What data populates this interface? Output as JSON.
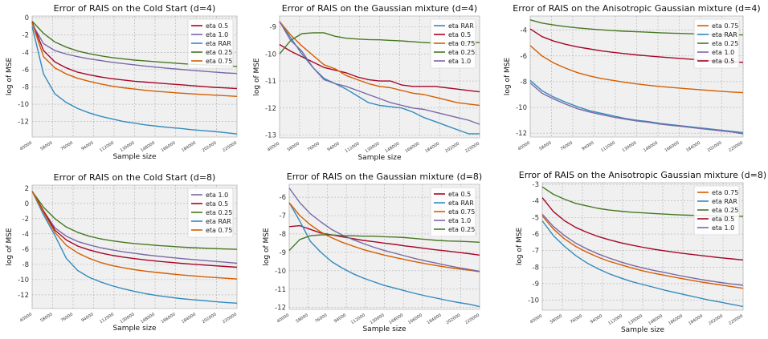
{
  "colors": {
    "eta 0.5": "#A60628",
    "eta 1.0": "#7A68A6",
    "eta RAR": "#348ABD",
    "eta 0.25": "#467821",
    "eta 0.75": "#D55E00",
    "panel_bg": "#F0F0F0",
    "grid": "#B0B0B0"
  },
  "x_ticks": [
    "40000",
    "58000",
    "76000",
    "94000",
    "112000",
    "130000",
    "148000",
    "166000",
    "184000",
    "202000",
    "220000"
  ],
  "chart_data": [
    {
      "type": "line",
      "title": "Error of RAIS on the Cold Start (d=4)",
      "xlabel": "Sample size",
      "ylabel": "log of MSE",
      "x": [
        40000,
        50000,
        60000,
        70000,
        80000,
        90000,
        100000,
        110000,
        120000,
        130000,
        140000,
        150000,
        160000,
        170000,
        180000,
        190000,
        200000,
        210000,
        220000
      ],
      "ylim": [
        -13.8,
        0.2
      ],
      "yticks": [
        0,
        -2,
        -4,
        -6,
        -8,
        -10,
        -12
      ],
      "legend": "top-right",
      "grid": true,
      "series": [
        {
          "name": "eta 0.5",
          "values": [
            -0.5,
            -3.8,
            -5.1,
            -5.8,
            -6.3,
            -6.6,
            -6.85,
            -7.05,
            -7.2,
            -7.35,
            -7.45,
            -7.55,
            -7.65,
            -7.75,
            -7.85,
            -7.95,
            -8.05,
            -8.12,
            -8.2
          ]
        },
        {
          "name": "eta 1.0",
          "values": [
            -0.7,
            -3.0,
            -3.8,
            -4.2,
            -4.5,
            -4.75,
            -4.95,
            -5.15,
            -5.3,
            -5.45,
            -5.6,
            -5.72,
            -5.85,
            -5.97,
            -6.08,
            -6.18,
            -6.28,
            -6.38,
            -6.45
          ]
        },
        {
          "name": "eta RAR",
          "values": [
            -1.0,
            -6.5,
            -8.8,
            -9.8,
            -10.5,
            -11.0,
            -11.4,
            -11.7,
            -12.0,
            -12.2,
            -12.4,
            -12.55,
            -12.7,
            -12.8,
            -12.95,
            -13.05,
            -13.15,
            -13.3,
            -13.45
          ]
        },
        {
          "name": "eta 0.25",
          "values": [
            -0.4,
            -1.8,
            -2.8,
            -3.4,
            -3.85,
            -4.15,
            -4.4,
            -4.6,
            -4.75,
            -4.9,
            -5.0,
            -5.1,
            -5.2,
            -5.3,
            -5.38,
            -5.45,
            -5.52,
            -5.58,
            -5.62
          ]
        },
        {
          "name": "eta 0.75",
          "values": [
            -0.6,
            -4.5,
            -5.8,
            -6.5,
            -7.0,
            -7.35,
            -7.65,
            -7.9,
            -8.1,
            -8.25,
            -8.4,
            -8.52,
            -8.62,
            -8.72,
            -8.8,
            -8.88,
            -8.95,
            -9.02,
            -9.1
          ]
        }
      ]
    },
    {
      "type": "line",
      "title": "Error of RAIS on the Gaussian mixture (d=4)",
      "xlabel": "Sample size",
      "ylabel": "log of MSE",
      "x": [
        40000,
        50000,
        60000,
        70000,
        80000,
        90000,
        100000,
        110000,
        120000,
        130000,
        140000,
        150000,
        160000,
        170000,
        180000,
        190000,
        200000,
        210000,
        220000
      ],
      "ylim": [
        -13.1,
        -8.6
      ],
      "yticks": [
        -9,
        -10,
        -11,
        -12,
        -13
      ],
      "legend": "top-right",
      "grid": true,
      "series": [
        {
          "name": "eta RAR",
          "values": [
            -8.8,
            -9.4,
            -10.0,
            -10.5,
            -10.9,
            -11.1,
            -11.3,
            -11.55,
            -11.8,
            -11.9,
            -11.95,
            -12.0,
            -12.15,
            -12.35,
            -12.5,
            -12.65,
            -12.8,
            -12.95,
            -12.95
          ]
        },
        {
          "name": "eta 0.5",
          "values": [
            -9.65,
            -9.9,
            -10.1,
            -10.3,
            -10.5,
            -10.6,
            -10.7,
            -10.85,
            -10.95,
            -11.0,
            -11.0,
            -11.15,
            -11.2,
            -11.2,
            -11.2,
            -11.25,
            -11.3,
            -11.35,
            -11.4
          ]
        },
        {
          "name": "eta 0.75",
          "values": [
            -8.8,
            -9.3,
            -9.7,
            -10.05,
            -10.4,
            -10.55,
            -10.8,
            -10.95,
            -11.1,
            -11.2,
            -11.25,
            -11.35,
            -11.45,
            -11.5,
            -11.6,
            -11.7,
            -11.8,
            -11.85,
            -11.9
          ]
        },
        {
          "name": "eta 0.25",
          "values": [
            -10.0,
            -9.5,
            -9.25,
            -9.22,
            -9.22,
            -9.35,
            -9.42,
            -9.45,
            -9.47,
            -9.48,
            -9.5,
            -9.52,
            -9.55,
            -9.58,
            -9.6,
            -9.6,
            -9.6,
            -9.58,
            -9.58
          ]
        },
        {
          "name": "eta 1.0",
          "values": [
            -8.8,
            -9.5,
            -9.9,
            -10.5,
            -10.95,
            -11.1,
            -11.2,
            -11.35,
            -11.5,
            -11.65,
            -11.8,
            -11.9,
            -12.0,
            -12.05,
            -12.15,
            -12.25,
            -12.35,
            -12.45,
            -12.6
          ]
        }
      ]
    },
    {
      "type": "line",
      "title": "Error of RAIS on the Anisotropic Gaussian mixture (d=4)",
      "xlabel": "",
      "ylabel": "log of MSE",
      "x": [
        40000,
        50000,
        60000,
        70000,
        80000,
        90000,
        100000,
        110000,
        120000,
        130000,
        140000,
        150000,
        160000,
        170000,
        180000,
        190000,
        200000,
        210000,
        220000
      ],
      "ylim": [
        -12.3,
        -2.9
      ],
      "yticks": [
        -4,
        -6,
        -8,
        -10,
        -12
      ],
      "legend": "top-right",
      "grid": true,
      "series": [
        {
          "name": "eta 0.75",
          "values": [
            -5.2,
            -6.0,
            -6.55,
            -6.95,
            -7.3,
            -7.55,
            -7.75,
            -7.9,
            -8.05,
            -8.17,
            -8.28,
            -8.37,
            -8.45,
            -8.53,
            -8.6,
            -8.67,
            -8.74,
            -8.8,
            -8.85
          ]
        },
        {
          "name": "eta RAR",
          "values": [
            -7.9,
            -8.7,
            -9.2,
            -9.6,
            -9.95,
            -10.25,
            -10.45,
            -10.65,
            -10.85,
            -11.0,
            -11.1,
            -11.25,
            -11.35,
            -11.45,
            -11.55,
            -11.65,
            -11.75,
            -11.85,
            -11.95
          ]
        },
        {
          "name": "eta 0.25",
          "values": [
            -3.2,
            -3.45,
            -3.6,
            -3.72,
            -3.82,
            -3.9,
            -3.97,
            -4.03,
            -4.08,
            -4.12,
            -4.16,
            -4.2,
            -4.23,
            -4.26,
            -4.29,
            -4.31,
            -4.33,
            -4.35,
            -4.37
          ]
        },
        {
          "name": "eta 1.0",
          "values": [
            -8.1,
            -8.9,
            -9.35,
            -9.75,
            -10.1,
            -10.35,
            -10.55,
            -10.75,
            -10.9,
            -11.05,
            -11.15,
            -11.3,
            -11.4,
            -11.5,
            -11.6,
            -11.7,
            -11.8,
            -11.9,
            -12.05
          ]
        },
        {
          "name": "eta 0.5",
          "values": [
            -3.9,
            -4.5,
            -4.85,
            -5.1,
            -5.3,
            -5.45,
            -5.6,
            -5.72,
            -5.82,
            -5.92,
            -6.0,
            -6.08,
            -6.15,
            -6.22,
            -6.28,
            -6.34,
            -6.4,
            -6.45,
            -6.5
          ]
        }
      ]
    },
    {
      "type": "line",
      "title": "Error of RAIS on the Cold Start (d=8)",
      "xlabel": "Sample size",
      "ylabel": "log of MSE",
      "x": [
        40000,
        50000,
        60000,
        70000,
        80000,
        90000,
        100000,
        110000,
        120000,
        130000,
        140000,
        150000,
        160000,
        170000,
        180000,
        190000,
        200000,
        210000,
        220000
      ],
      "ylim": [
        -13.8,
        2.4
      ],
      "yticks": [
        2,
        0,
        -2,
        -4,
        -6,
        -8,
        -10,
        -12
      ],
      "legend": "top-right",
      "grid": true,
      "series": [
        {
          "name": "eta 1.0",
          "values": [
            1.6,
            -1.0,
            -3.2,
            -4.3,
            -5.0,
            -5.45,
            -5.8,
            -6.1,
            -6.35,
            -6.55,
            -6.75,
            -6.92,
            -7.08,
            -7.22,
            -7.35,
            -7.48,
            -7.6,
            -7.72,
            -7.85
          ]
        },
        {
          "name": "eta 0.5",
          "values": [
            1.6,
            -1.0,
            -3.5,
            -4.8,
            -5.6,
            -6.1,
            -6.5,
            -6.8,
            -7.05,
            -7.25,
            -7.42,
            -7.58,
            -7.72,
            -7.85,
            -7.97,
            -8.08,
            -8.18,
            -8.28,
            -8.38
          ]
        },
        {
          "name": "eta 0.25",
          "values": [
            1.6,
            -0.5,
            -2.0,
            -3.1,
            -3.8,
            -4.3,
            -4.65,
            -4.9,
            -5.1,
            -5.27,
            -5.4,
            -5.52,
            -5.62,
            -5.72,
            -5.8,
            -5.87,
            -5.93,
            -5.98,
            -6.03
          ]
        },
        {
          "name": "eta RAR",
          "values": [
            1.6,
            -1.5,
            -4.2,
            -7.2,
            -8.8,
            -9.7,
            -10.3,
            -10.8,
            -11.2,
            -11.55,
            -11.85,
            -12.1,
            -12.3,
            -12.48,
            -12.62,
            -12.75,
            -12.88,
            -13.0,
            -13.1
          ]
        },
        {
          "name": "eta 0.75",
          "values": [
            1.6,
            -1.2,
            -3.8,
            -5.5,
            -6.5,
            -7.2,
            -7.75,
            -8.15,
            -8.45,
            -8.7,
            -8.9,
            -9.07,
            -9.22,
            -9.37,
            -9.5,
            -9.62,
            -9.72,
            -9.82,
            -9.92
          ]
        }
      ]
    },
    {
      "type": "line",
      "title": "Error of RAIS on the Gaussian mixture (d=8)",
      "xlabel": "Sample size",
      "ylabel": "log of MSE",
      "x": [
        40000,
        50000,
        60000,
        70000,
        80000,
        90000,
        100000,
        110000,
        120000,
        130000,
        140000,
        150000,
        160000,
        170000,
        180000,
        190000,
        200000,
        210000,
        220000
      ],
      "ylim": [
        -12.1,
        -5.3
      ],
      "yticks": [
        -6,
        -7,
        -8,
        -9,
        -10,
        -11,
        -12
      ],
      "legend": "top-right",
      "grid": true,
      "series": [
        {
          "name": "eta 0.5",
          "values": [
            -7.6,
            -7.55,
            -7.75,
            -7.95,
            -8.05,
            -8.15,
            -8.25,
            -8.35,
            -8.42,
            -8.5,
            -8.57,
            -8.65,
            -8.72,
            -8.8,
            -8.87,
            -8.93,
            -9.0,
            -9.07,
            -9.15
          ]
        },
        {
          "name": "eta RAR",
          "values": [
            -6.3,
            -7.3,
            -8.4,
            -9.0,
            -9.5,
            -9.85,
            -10.15,
            -10.4,
            -10.6,
            -10.8,
            -10.95,
            -11.1,
            -11.25,
            -11.38,
            -11.5,
            -11.62,
            -11.73,
            -11.82,
            -11.95
          ]
        },
        {
          "name": "eta 0.75",
          "values": [
            -6.3,
            -7.0,
            -7.5,
            -7.9,
            -8.2,
            -8.45,
            -8.65,
            -8.85,
            -9.0,
            -9.15,
            -9.28,
            -9.4,
            -9.52,
            -9.63,
            -9.73,
            -9.82,
            -9.9,
            -9.97,
            -10.05
          ]
        },
        {
          "name": "eta 1.0",
          "values": [
            -5.5,
            -6.3,
            -6.9,
            -7.35,
            -7.75,
            -8.05,
            -8.3,
            -8.52,
            -8.72,
            -8.9,
            -9.05,
            -9.2,
            -9.35,
            -9.48,
            -9.6,
            -9.72,
            -9.83,
            -9.93,
            -10.03
          ]
        },
        {
          "name": "eta 0.25",
          "values": [
            -8.9,
            -8.3,
            -8.1,
            -8.05,
            -8.05,
            -8.1,
            -8.1,
            -8.12,
            -8.12,
            -8.15,
            -8.17,
            -8.2,
            -8.25,
            -8.3,
            -8.35,
            -8.38,
            -8.4,
            -8.42,
            -8.45
          ]
        }
      ]
    },
    {
      "type": "line",
      "title": "Error of RAIS on the Anisotropic Gaussian mixture (d=8)",
      "xlabel": "Sample size",
      "ylabel": "log of MSE",
      "x": [
        40000,
        50000,
        60000,
        70000,
        80000,
        90000,
        100000,
        110000,
        120000,
        130000,
        140000,
        150000,
        160000,
        170000,
        180000,
        190000,
        200000,
        210000,
        220000
      ],
      "ylim": [
        -10.6,
        -2.9
      ],
      "yticks": [
        -3,
        -4,
        -5,
        -6,
        -7,
        -8,
        -9,
        -10
      ],
      "legend": "top-right",
      "grid": true,
      "series": [
        {
          "name": "eta 0.75",
          "values": [
            -4.9,
            -5.7,
            -6.3,
            -6.75,
            -7.1,
            -7.4,
            -7.65,
            -7.85,
            -8.05,
            -8.22,
            -8.37,
            -8.5,
            -8.63,
            -8.75,
            -8.87,
            -8.98,
            -9.08,
            -9.18,
            -9.28
          ]
        },
        {
          "name": "eta RAR",
          "values": [
            -5.2,
            -6.1,
            -6.75,
            -7.3,
            -7.75,
            -8.1,
            -8.4,
            -8.65,
            -8.87,
            -9.05,
            -9.22,
            -9.4,
            -9.55,
            -9.7,
            -9.85,
            -10.0,
            -10.12,
            -10.25,
            -10.38
          ]
        },
        {
          "name": "eta 0.25",
          "values": [
            -3.15,
            -3.6,
            -3.9,
            -4.15,
            -4.3,
            -4.45,
            -4.55,
            -4.62,
            -4.68,
            -4.72,
            -4.76,
            -4.8,
            -4.83,
            -4.86,
            -4.88,
            -4.9,
            -4.91,
            -4.92,
            -4.93
          ]
        },
        {
          "name": "eta 0.5",
          "values": [
            -3.8,
            -4.65,
            -5.2,
            -5.6,
            -5.9,
            -6.15,
            -6.35,
            -6.52,
            -6.67,
            -6.8,
            -6.92,
            -7.02,
            -7.12,
            -7.2,
            -7.28,
            -7.36,
            -7.44,
            -7.5,
            -7.57
          ]
        },
        {
          "name": "eta 1.0",
          "values": [
            -4.8,
            -5.55,
            -6.1,
            -6.55,
            -6.9,
            -7.2,
            -7.45,
            -7.68,
            -7.88,
            -8.05,
            -8.2,
            -8.33,
            -8.47,
            -8.6,
            -8.72,
            -8.83,
            -8.93,
            -9.02,
            -9.1
          ]
        }
      ]
    }
  ]
}
